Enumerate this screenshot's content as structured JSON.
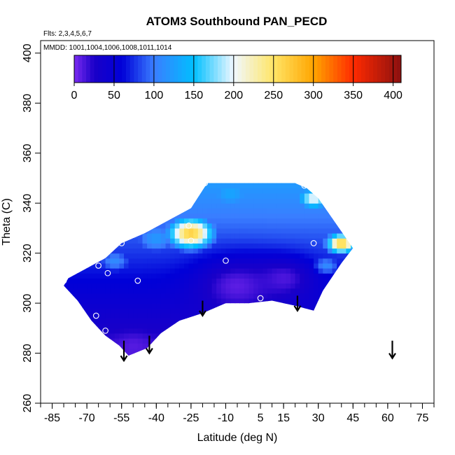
{
  "chart_data": {
    "type": "heatmap",
    "title": "ATOM3 Southbound PAN_PECD",
    "annotations": [
      "Flts: 2,3,4,5,6,7",
      "MMDD: 1001,1004,1006,1008,1011,1014"
    ],
    "xlabel": "Latitude (deg N)",
    "ylabel": "Theta (C)",
    "xlim": [
      -90,
      80
    ],
    "ylim": [
      260,
      405
    ],
    "x_ticks": [
      -85,
      -70,
      -55,
      -40,
      -25,
      -10,
      5,
      15,
      30,
      45,
      60,
      75
    ],
    "y_ticks": [
      260,
      280,
      300,
      320,
      340,
      360,
      380,
      400
    ],
    "colorbar": {
      "min": 0,
      "max": 410,
      "ticks": [
        0,
        50,
        100,
        150,
        200,
        250,
        300,
        350,
        400
      ],
      "stops": [
        {
          "v": 0,
          "c": "#7b2bf0"
        },
        {
          "v": 25,
          "c": "#1a00c8"
        },
        {
          "v": 60,
          "c": "#0000d8"
        },
        {
          "v": 100,
          "c": "#3a7dff"
        },
        {
          "v": 150,
          "c": "#00bfff"
        },
        {
          "v": 200,
          "c": "#f0f8ff"
        },
        {
          "v": 250,
          "c": "#ffe566"
        },
        {
          "v": 300,
          "c": "#ffa500"
        },
        {
          "v": 350,
          "c": "#ff2a00"
        },
        {
          "v": 410,
          "c": "#8b1010"
        }
      ]
    },
    "field_region": [
      [
        -78,
        310
      ],
      [
        -70,
        314
      ],
      [
        -62,
        318
      ],
      [
        -55,
        324
      ],
      [
        -45,
        328
      ],
      [
        -35,
        333
      ],
      [
        -25,
        338
      ],
      [
        -18,
        348
      ],
      [
        -5,
        348
      ],
      [
        5,
        348
      ],
      [
        20,
        348
      ],
      [
        25,
        346
      ],
      [
        30,
        342
      ],
      [
        36,
        334
      ],
      [
        45,
        322
      ],
      [
        40,
        316
      ],
      [
        32,
        305
      ],
      [
        28,
        297
      ],
      [
        20,
        299
      ],
      [
        10,
        301
      ],
      [
        0,
        300
      ],
      [
        -10,
        300
      ],
      [
        -20,
        296
      ],
      [
        -30,
        293
      ],
      [
        -38,
        288
      ],
      [
        -44,
        282
      ],
      [
        -52,
        279
      ],
      [
        -56,
        283
      ],
      [
        -62,
        287
      ],
      [
        -68,
        293
      ],
      [
        -74,
        301
      ],
      [
        -80,
        307
      ]
    ],
    "field_hotspots": [
      {
        "lat": -25,
        "theta": 328,
        "value": 270,
        "spread": 7
      },
      {
        "lat": 40,
        "theta": 324,
        "value": 270,
        "spread": 4.5
      },
      {
        "lat": 28,
        "theta": 342,
        "value": 205,
        "spread": 5
      },
      {
        "lat": -8,
        "theta": 344,
        "value": 130,
        "spread": 10
      },
      {
        "lat": 5,
        "theta": 346,
        "value": 115,
        "spread": 9
      },
      {
        "lat": -58,
        "theta": 317,
        "value": 110,
        "spread": 6
      },
      {
        "lat": -40,
        "theta": 326,
        "value": 120,
        "spread": 8
      },
      {
        "lat": 33,
        "theta": 315,
        "value": 120,
        "spread": 5
      }
    ],
    "field_lowspots": [
      {
        "lat": -5,
        "theta": 307,
        "value": 8,
        "spread": 11
      },
      {
        "lat": 15,
        "theta": 310,
        "value": 12,
        "spread": 8
      },
      {
        "lat": -50,
        "theta": 283,
        "value": 10,
        "spread": 5
      }
    ],
    "observation_points": [
      {
        "lat": -80,
        "theta": 309
      },
      {
        "lat": -65,
        "theta": 315
      },
      {
        "lat": -61,
        "theta": 312
      },
      {
        "lat": -55,
        "theta": 324
      },
      {
        "lat": -48,
        "theta": 309
      },
      {
        "lat": -26,
        "theta": 331
      },
      {
        "lat": -25,
        "theta": 325
      },
      {
        "lat": -19,
        "theta": 348
      },
      {
        "lat": -10,
        "theta": 317
      },
      {
        "lat": 5,
        "theta": 302
      },
      {
        "lat": 24,
        "theta": 347
      },
      {
        "lat": 28,
        "theta": 324
      },
      {
        "lat": 30,
        "theta": 297
      },
      {
        "lat": -66,
        "theta": 295
      },
      {
        "lat": -62,
        "theta": 289
      }
    ],
    "arrows": [
      {
        "lat": -54,
        "theta_top": 285,
        "theta_tip": 277
      },
      {
        "lat": -43,
        "theta_top": 287,
        "theta_tip": 280
      },
      {
        "lat": -20,
        "theta_top": 301,
        "theta_tip": 295
      },
      {
        "lat": 21,
        "theta_top": 303,
        "theta_tip": 297
      },
      {
        "lat": 62,
        "theta_top": 285,
        "theta_tip": 278
      }
    ]
  }
}
